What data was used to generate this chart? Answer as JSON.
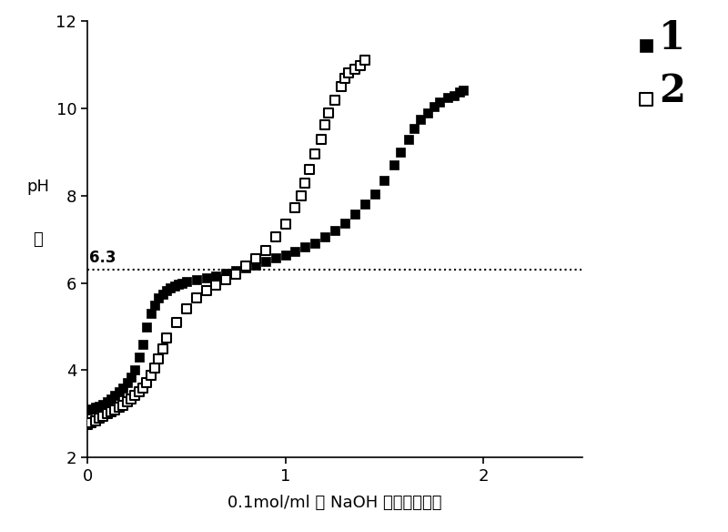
{
  "series1_x": [
    0.0,
    0.02,
    0.04,
    0.06,
    0.08,
    0.1,
    0.12,
    0.14,
    0.16,
    0.18,
    0.2,
    0.22,
    0.24,
    0.26,
    0.28,
    0.3,
    0.32,
    0.34,
    0.36,
    0.38,
    0.4,
    0.42,
    0.44,
    0.46,
    0.48,
    0.5,
    0.55,
    0.6,
    0.65,
    0.7,
    0.75,
    0.8,
    0.85,
    0.9,
    0.95,
    1.0,
    1.05,
    1.1,
    1.15,
    1.2,
    1.25,
    1.3,
    1.35,
    1.4,
    1.45,
    1.5,
    1.55,
    1.58,
    1.62,
    1.65,
    1.68,
    1.72,
    1.75,
    1.78,
    1.82,
    1.85,
    1.88,
    1.9
  ],
  "series1_y": [
    3.1,
    3.12,
    3.15,
    3.18,
    3.22,
    3.28,
    3.35,
    3.42,
    3.5,
    3.6,
    3.72,
    3.85,
    4.0,
    4.3,
    4.6,
    5.0,
    5.3,
    5.5,
    5.65,
    5.75,
    5.82,
    5.88,
    5.93,
    5.97,
    6.0,
    6.03,
    6.08,
    6.12,
    6.17,
    6.22,
    6.28,
    6.35,
    6.42,
    6.5,
    6.58,
    6.65,
    6.73,
    6.82,
    6.92,
    7.05,
    7.2,
    7.38,
    7.58,
    7.8,
    8.05,
    8.35,
    8.7,
    9.0,
    9.3,
    9.55,
    9.75,
    9.9,
    10.05,
    10.15,
    10.25,
    10.3,
    10.38,
    10.42
  ],
  "series2_x": [
    0.0,
    0.02,
    0.04,
    0.06,
    0.08,
    0.1,
    0.12,
    0.14,
    0.16,
    0.18,
    0.2,
    0.22,
    0.24,
    0.26,
    0.28,
    0.3,
    0.32,
    0.34,
    0.36,
    0.38,
    0.4,
    0.45,
    0.5,
    0.55,
    0.6,
    0.65,
    0.7,
    0.75,
    0.8,
    0.85,
    0.9,
    0.95,
    1.0,
    1.05,
    1.08,
    1.1,
    1.12,
    1.15,
    1.18,
    1.2,
    1.22,
    1.25,
    1.28,
    1.3,
    1.32,
    1.35,
    1.38,
    1.4
  ],
  "series2_y": [
    2.75,
    2.8,
    2.85,
    2.9,
    2.95,
    3.0,
    3.05,
    3.1,
    3.15,
    3.2,
    3.28,
    3.35,
    3.42,
    3.5,
    3.6,
    3.72,
    3.88,
    4.05,
    4.25,
    4.5,
    4.75,
    5.1,
    5.4,
    5.65,
    5.82,
    5.95,
    6.08,
    6.2,
    6.38,
    6.55,
    6.75,
    7.05,
    7.35,
    7.72,
    8.0,
    8.3,
    8.6,
    8.95,
    9.3,
    9.62,
    9.9,
    10.2,
    10.5,
    10.7,
    10.82,
    10.9,
    10.98,
    11.1
  ],
  "xlabel": "0.1mol/ml 的 NaOH 水溶液的体积",
  "ylabel_top": "pH",
  "ylabel_bottom": "値",
  "xlim": [
    0,
    2.5
  ],
  "ylim": [
    2,
    12
  ],
  "yticks": [
    2,
    4,
    6,
    8,
    10,
    12
  ],
  "xticks": [
    0,
    1,
    2
  ],
  "xtick_labels": [
    "0",
    "1",
    "2"
  ],
  "hline_y": 6.3,
  "hline_label": "6.3",
  "legend_label1": "1",
  "legend_label2": "2",
  "marker_size": 55,
  "bg_color": "#ffffff",
  "series1_color": "#000000",
  "series2_color": "#000000"
}
